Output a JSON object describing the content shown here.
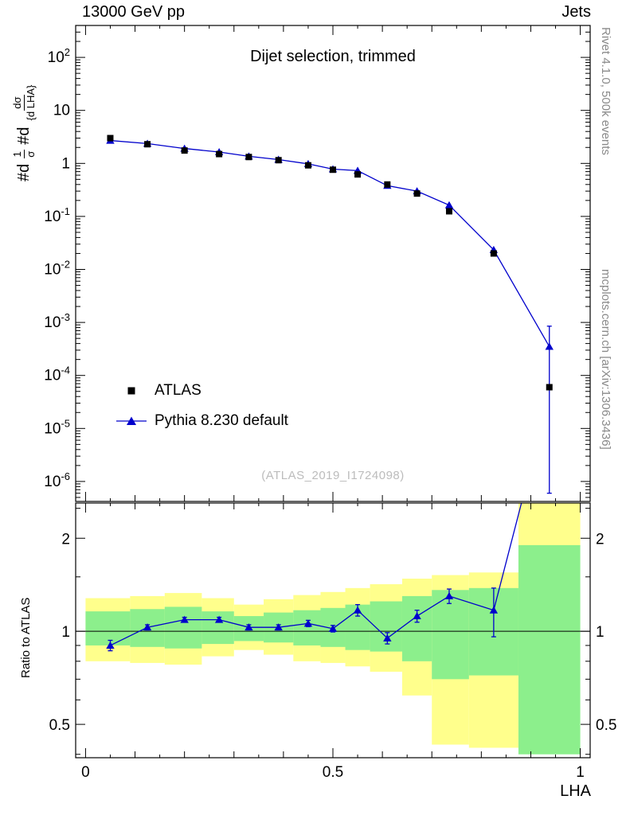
{
  "header": {
    "left": "13000 GeV pp",
    "right": "Jets"
  },
  "right_margin": {
    "top": "Rivet 4.1.0,  500k events",
    "bottom": "mcplots.cern.ch [arXiv:1306.3436]"
  },
  "xlabel": "LHA",
  "main_plot": {
    "watermark": "(ATLAS_2019_I1724098)",
    "ylabel": {
      "t1": "#d",
      "f1n": "1",
      "f1d": "σ",
      "t2": "#d",
      "f2n": "dσ",
      "f2d": "{d LHA}"
    },
    "legend": [
      {
        "label": "ATLAS",
        "marker": "square",
        "color": "#000000"
      },
      {
        "label": "Pythia 8.230 default",
        "marker": "triangle",
        "color": "#0000cc"
      }
    ]
  },
  "colors": {
    "series_blue": "#0000cc",
    "band_yellow": "#ffff8c",
    "band_green": "#8cef8c",
    "watermark": "#bcbcbc",
    "margin_text": "#8a8a8a",
    "frame": "#000000"
  },
  "chart_data": [
    {
      "type": "line",
      "title": "Dijet selection, trimmed",
      "xlabel": "LHA",
      "ylabel": "1/sigma dsigma/d LHA",
      "yscale": "log",
      "xlim": [
        -0.02,
        1.02
      ],
      "ylim": [
        4.2e-07,
        400
      ],
      "xticks": [
        {
          "v": 0,
          "label": "0"
        },
        {
          "v": 0.5,
          "label": "0.5"
        },
        {
          "v": 1,
          "label": "1"
        }
      ],
      "yticks": [
        {
          "v": 100,
          "base": "10",
          "sup": "2"
        },
        {
          "v": 10,
          "base": "10",
          "sup": ""
        },
        {
          "v": 1,
          "base": "1",
          "sup": ""
        },
        {
          "v": 0.1,
          "base": "10",
          "sup": "-1"
        },
        {
          "v": 0.01,
          "base": "10",
          "sup": "-2"
        },
        {
          "v": 0.001,
          "base": "10",
          "sup": "-3"
        },
        {
          "v": 0.0001,
          "base": "10",
          "sup": "-4"
        },
        {
          "v": 1e-05,
          "base": "10",
          "sup": "-5"
        },
        {
          "v": 1e-06,
          "base": "10",
          "sup": "-6"
        }
      ],
      "x": [
        0.05,
        0.125,
        0.2,
        0.27,
        0.33,
        0.39,
        0.45,
        0.5,
        0.55,
        0.61,
        0.67,
        0.735,
        0.825,
        0.9375
      ],
      "series": [
        {
          "name": "ATLAS",
          "marker": "square",
          "color": "#000000",
          "values": [
            3.0,
            2.3,
            1.75,
            1.5,
            1.32,
            1.15,
            0.92,
            0.76,
            0.62,
            0.4,
            0.27,
            0.125,
            0.02,
            6e-05
          ]
        },
        {
          "name": "Pythia 8.230 default",
          "marker": "triangle",
          "color": "#0000cc",
          "values": [
            2.7,
            2.37,
            1.91,
            1.64,
            1.36,
            1.18,
            0.98,
            0.78,
            0.73,
            0.38,
            0.3,
            0.163,
            0.0234,
            0.00035
          ],
          "err_lo_abs": [
            null,
            null,
            null,
            null,
            null,
            null,
            null,
            null,
            null,
            null,
            null,
            null,
            null,
            6e-07
          ],
          "err_hi_abs": [
            null,
            null,
            null,
            null,
            null,
            null,
            null,
            null,
            null,
            null,
            null,
            null,
            null,
            0.00085
          ]
        }
      ]
    },
    {
      "type": "ratio",
      "ylabel": "Ratio to ATLAS",
      "yscale": "log",
      "xlim": [
        -0.02,
        1.02
      ],
      "ylim": [
        0.39,
        2.6
      ],
      "refline": 1,
      "yticks": [
        {
          "v": 0.5,
          "label": "0.5"
        },
        {
          "v": 1,
          "label": "1"
        },
        {
          "v": 2,
          "label": "2"
        }
      ],
      "yminor": [
        0.4,
        0.6,
        0.7,
        0.8,
        0.9,
        1.5,
        2.5
      ],
      "x": [
        0.05,
        0.125,
        0.2,
        0.27,
        0.33,
        0.39,
        0.45,
        0.5,
        0.55,
        0.61,
        0.67,
        0.735,
        0.825,
        0.9375
      ],
      "values": [
        0.9,
        1.03,
        1.09,
        1.09,
        1.03,
        1.03,
        1.06,
        1.02,
        1.17,
        0.95,
        1.12,
        1.3,
        1.17,
        5.8
      ],
      "yerr": [
        0.035,
        0.02,
        0.02,
        0.02,
        0.02,
        0.02,
        0.025,
        0.025,
        0.05,
        0.04,
        0.05,
        0.07,
        0.21,
        3.0
      ],
      "bands": {
        "edges": [
          0,
          0.09,
          0.16,
          0.235,
          0.3,
          0.36,
          0.42,
          0.475,
          0.525,
          0.575,
          0.64,
          0.7,
          0.775,
          0.875,
          1.0
        ],
        "yellow_lo": [
          0.8,
          0.79,
          0.78,
          0.83,
          0.87,
          0.84,
          0.8,
          0.79,
          0.77,
          0.74,
          0.62,
          0.43,
          0.42,
          1.88
        ],
        "yellow_hi": [
          1.28,
          1.3,
          1.33,
          1.28,
          1.22,
          1.27,
          1.31,
          1.34,
          1.38,
          1.42,
          1.48,
          1.52,
          1.55,
          2.6
        ],
        "green_lo": [
          0.9,
          0.89,
          0.88,
          0.91,
          0.93,
          0.92,
          0.9,
          0.89,
          0.87,
          0.86,
          0.8,
          0.7,
          0.72,
          0.4
        ],
        "green_hi": [
          1.16,
          1.18,
          1.2,
          1.16,
          1.12,
          1.15,
          1.17,
          1.19,
          1.22,
          1.25,
          1.3,
          1.36,
          1.38,
          1.9
        ]
      }
    }
  ]
}
